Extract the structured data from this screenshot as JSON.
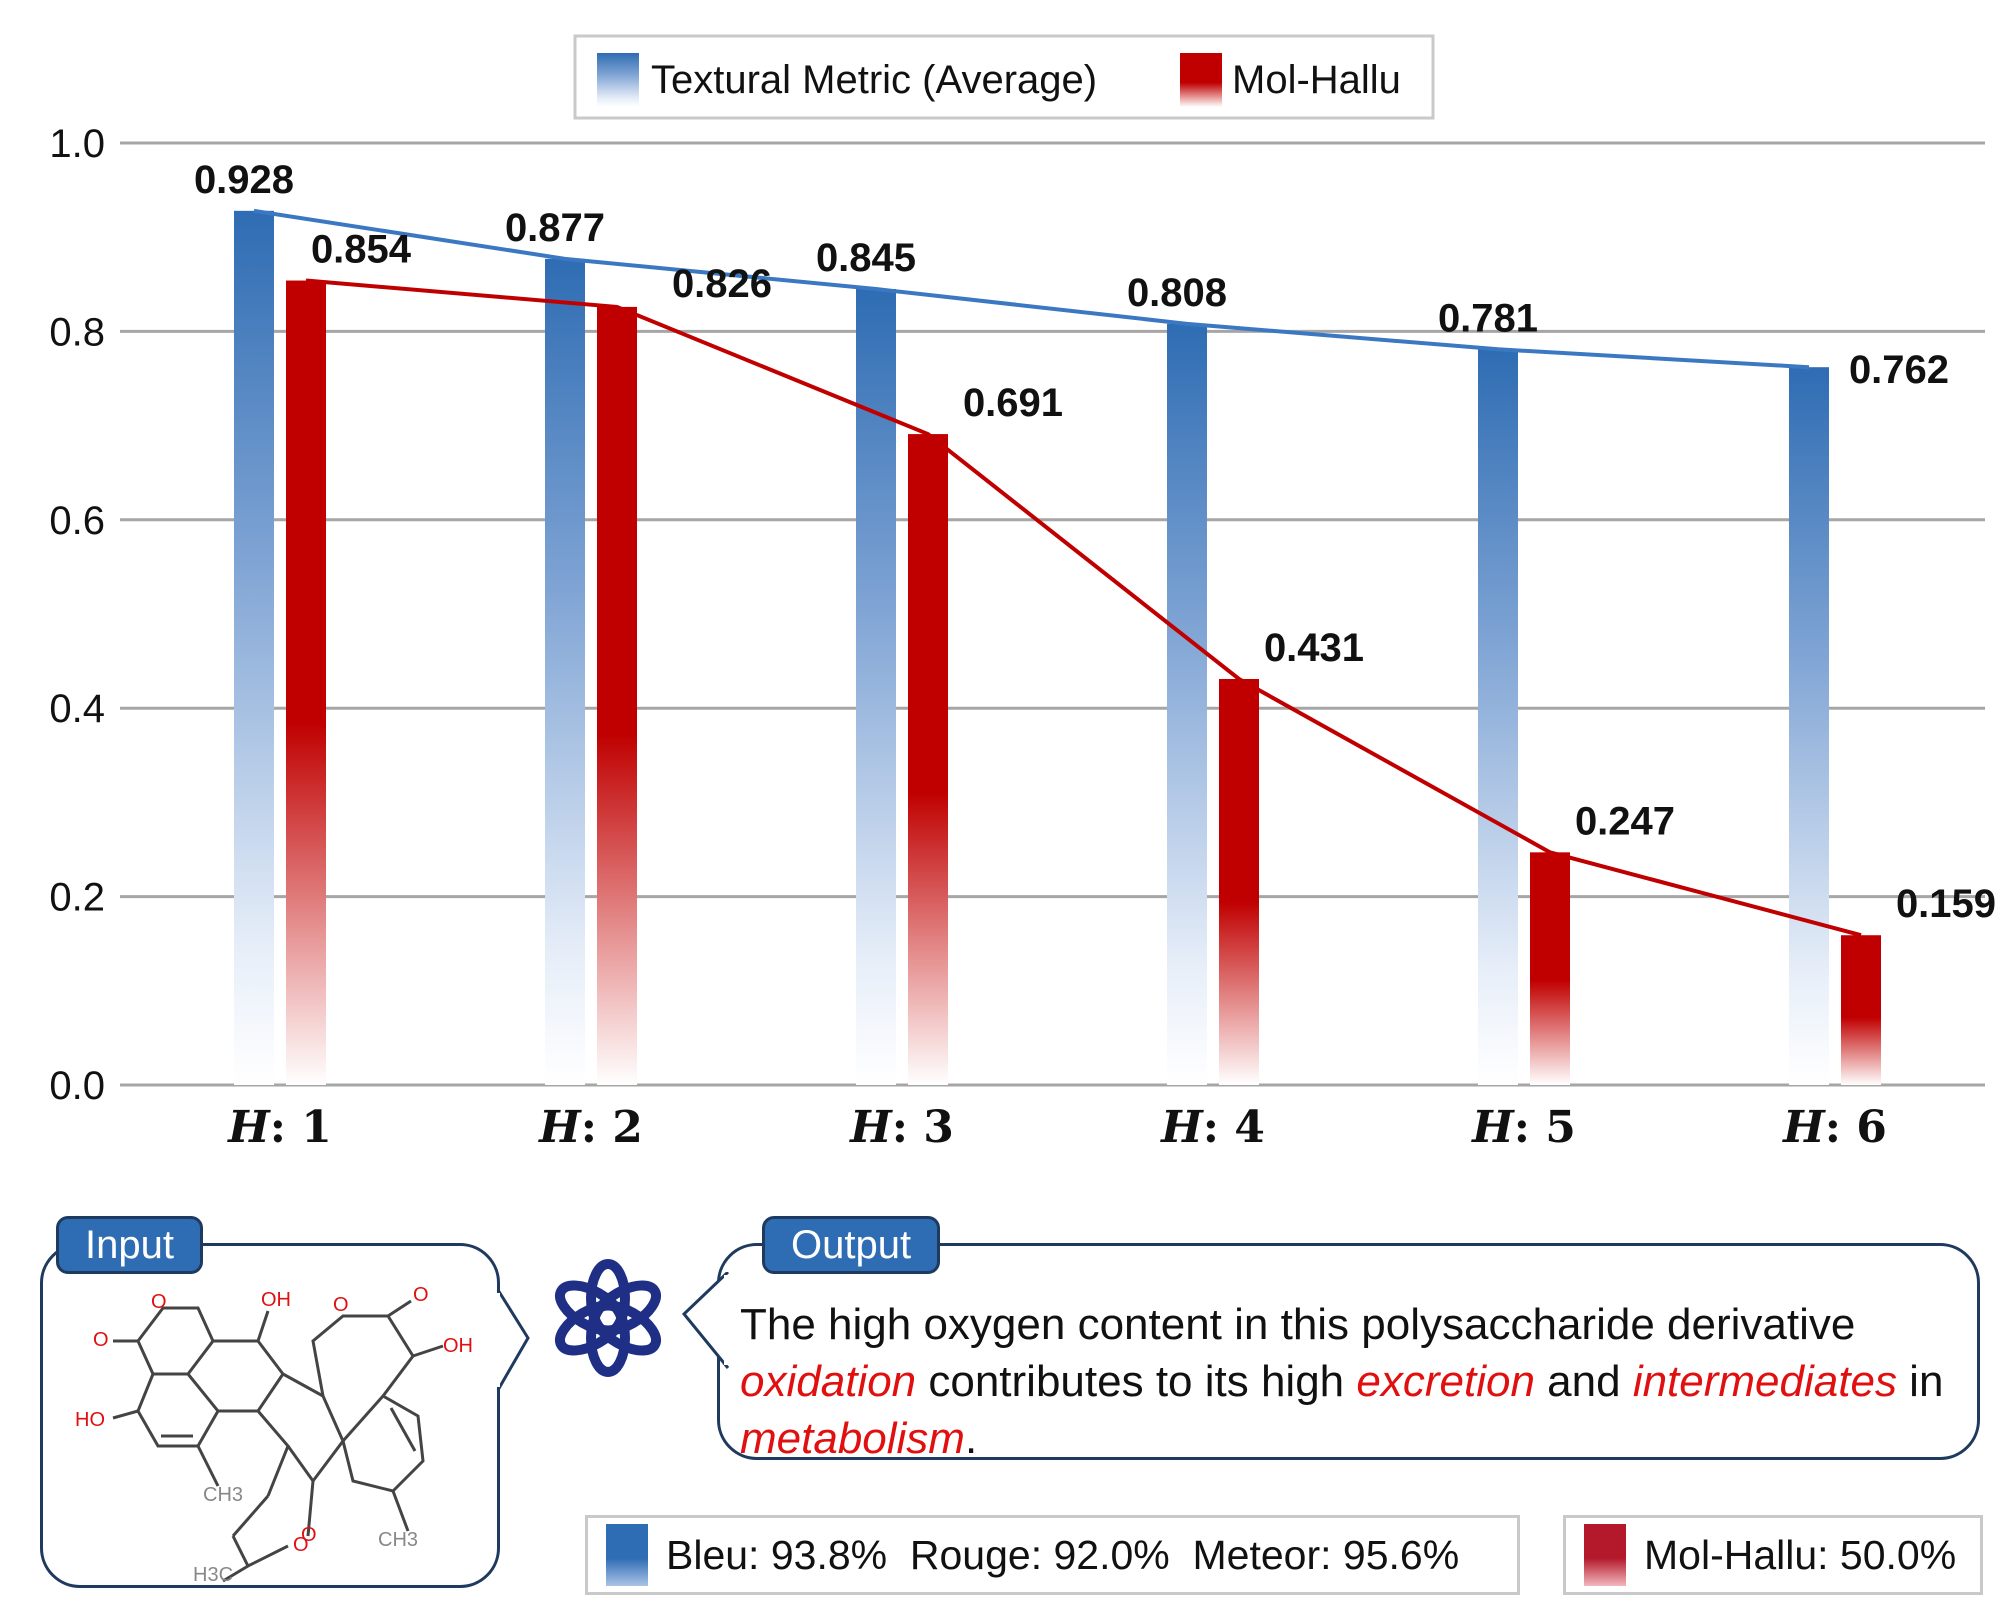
{
  "chart_data": {
    "type": "bar",
    "categories": [
      "H: 1",
      "H: 2",
      "H: 3",
      "H: 4",
      "H: 5",
      "H: 6"
    ],
    "category_prefix": "H",
    "category_numbers": [
      "1",
      "2",
      "3",
      "4",
      "5",
      "6"
    ],
    "series": [
      {
        "name": "Textural Metric (Average)",
        "values": [
          0.928,
          0.877,
          0.845,
          0.808,
          0.781,
          0.762
        ],
        "color": "#2e6cb3"
      },
      {
        "name": "Mol-Hallu",
        "values": [
          0.854,
          0.826,
          0.691,
          0.431,
          0.247,
          0.159
        ],
        "color": "#c00000"
      }
    ],
    "value_labels": {
      "textural": [
        "0.928",
        "0.877",
        "0.845",
        "0.808",
        "0.781",
        "0.762"
      ],
      "hallu": [
        "0.854",
        "0.826",
        "0.691",
        "0.431",
        "0.247",
        "0.159"
      ]
    },
    "ylim": [
      0,
      1
    ],
    "yticks": [
      "0.0",
      "0.2",
      "0.4",
      "0.6",
      "0.8",
      "1.0"
    ],
    "grid": true,
    "legend_position": "top-center",
    "overlay": "line-per-series"
  },
  "example": {
    "input_tag": "Input",
    "output_tag": "Output",
    "molecule_atoms": [
      "O",
      "OH",
      "O",
      "O",
      "OH",
      "O",
      "HO",
      "CH3",
      "O",
      "CH3",
      "O",
      "H3C"
    ],
    "output_parts": [
      {
        "text": "The high oxygen content in this polysaccharide derivative ",
        "hl": false
      },
      {
        "text": "oxidation",
        "hl": true
      },
      {
        "text": " contributes to its high ",
        "hl": false
      },
      {
        "text": "excretion",
        "hl": true
      },
      {
        "text": " and ",
        "hl": false
      },
      {
        "text": "intermediates",
        "hl": true
      },
      {
        "text": " in ",
        "hl": false
      },
      {
        "text": "metabolism",
        "hl": true
      },
      {
        "text": ".",
        "hl": false
      }
    ],
    "metrics_text": "Bleu: 93.8%  Rouge: 92.0%  Meteor: 95.6%",
    "hallu_text": "Mol-Hallu: 50.0%"
  },
  "icons": {
    "model": "openai-logo-icon",
    "molecule": "molecule-structure-icon"
  }
}
